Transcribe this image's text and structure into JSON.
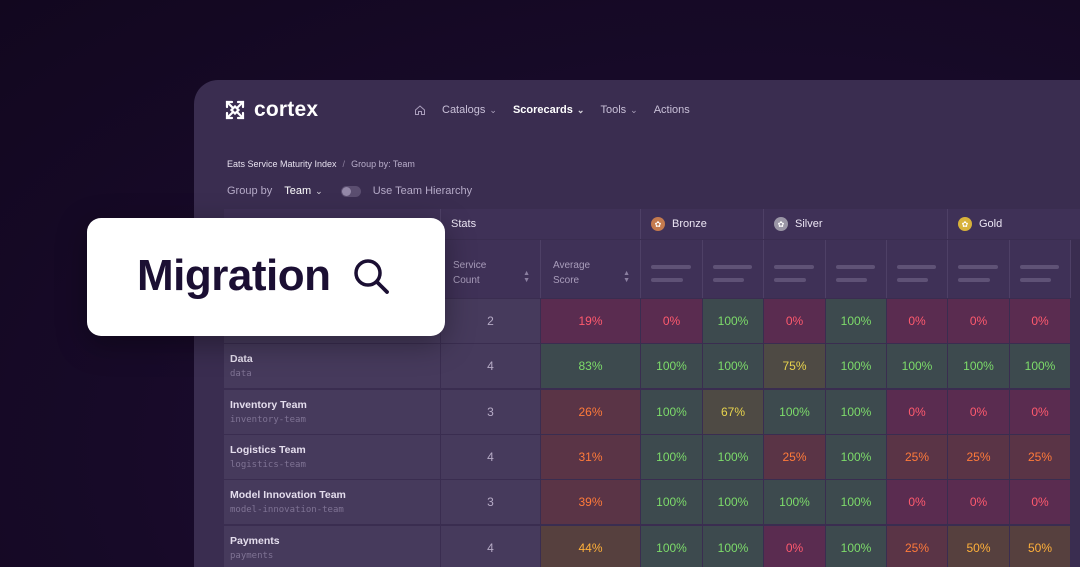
{
  "brand": {
    "name": "cortex"
  },
  "nav": {
    "items": [
      {
        "label": "Catalogs",
        "dropdown": true,
        "active": false
      },
      {
        "label": "Scorecards",
        "dropdown": true,
        "active": true
      },
      {
        "label": "Tools",
        "dropdown": true,
        "active": false
      },
      {
        "label": "Actions",
        "dropdown": false,
        "active": false
      }
    ]
  },
  "breadcrumb": {
    "current": "Eats Service Maturity Index",
    "separator": "/",
    "sub": "Group by: Team"
  },
  "group_by": {
    "label": "Group by",
    "value": "Team",
    "toggle_label": "Use Team Hierarchy",
    "toggle_on": false
  },
  "table": {
    "header": {
      "stats": "Stats",
      "bronze": "Bronze",
      "silver": "Silver",
      "gold": "Gold"
    },
    "subheaders": {
      "service_count": [
        "Service",
        "Count"
      ],
      "average_score": [
        "Average",
        "Score"
      ]
    },
    "level_colors": {
      "bronze": "#c47a4e",
      "silver": "#9a96a6",
      "gold": "#d8b23a"
    },
    "rows": [
      {
        "name": "",
        "slug": "",
        "count": "2",
        "avg": "19%",
        "rules": [
          "0%",
          "100%",
          "0%",
          "100%",
          "0%",
          "0%",
          "0%"
        ]
      },
      {
        "name": "Data",
        "slug": "data",
        "count": "4",
        "avg": "83%",
        "rules": [
          "100%",
          "100%",
          "75%",
          "100%",
          "100%",
          "100%",
          "100%"
        ]
      },
      {
        "name": "Inventory Team",
        "slug": "inventory-team",
        "count": "3",
        "avg": "26%",
        "rules": [
          "100%",
          "67%",
          "100%",
          "100%",
          "0%",
          "0%",
          "0%"
        ]
      },
      {
        "name": "Logistics Team",
        "slug": "logistics-team",
        "count": "4",
        "avg": "31%",
        "rules": [
          "100%",
          "100%",
          "25%",
          "100%",
          "25%",
          "25%",
          "25%"
        ]
      },
      {
        "name": "Model Innovation Team",
        "slug": "model-innovation-team",
        "count": "3",
        "avg": "39%",
        "rules": [
          "100%",
          "100%",
          "100%",
          "100%",
          "0%",
          "0%",
          "0%"
        ]
      },
      {
        "name": "Payments",
        "slug": "payments",
        "count": "4",
        "avg": "44%",
        "rules": [
          "100%",
          "100%",
          "0%",
          "100%",
          "25%",
          "50%",
          "50%"
        ]
      }
    ]
  },
  "search_overlay": {
    "query": "Migration",
    "icon": "search-icon"
  },
  "colors": {
    "good_text": "#7ddc6a",
    "good_bg": "#3d4a4e",
    "bad_text": "#ff5a6e",
    "bad_bg": "#5a2c50",
    "mid_text": "#e8d44d",
    "mid_bg": "#4e4a44",
    "warn_text": "#ff7a3a",
    "warn_bg": "#5a3446",
    "amber_text": "#ffb03a",
    "amber_bg": "#56403e"
  }
}
